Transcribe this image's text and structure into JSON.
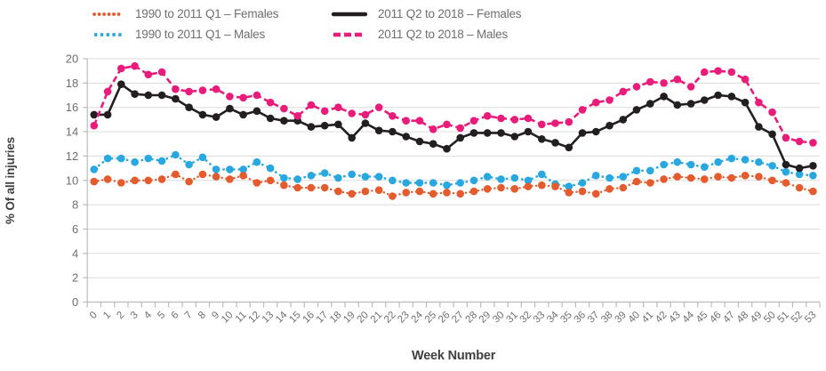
{
  "figure": {
    "xlabel": "Week Number",
    "ylabel": "% Of all injuries"
  },
  "colors": {
    "orange": "#e45b2d",
    "blue": "#29a8e0",
    "black": "#231f20",
    "magenta": "#ea1c7b",
    "grid": "#dcdcdc",
    "axis": "#b9bcbe",
    "tick_text": "#6d6e71",
    "title_text": "#414042"
  },
  "chart_data": {
    "type": "line",
    "title": "",
    "xlabel": "Week Number",
    "ylabel": "% Of all injuries",
    "x": [
      0,
      1,
      2,
      3,
      4,
      5,
      6,
      7,
      8,
      9,
      10,
      11,
      12,
      13,
      14,
      15,
      16,
      17,
      18,
      19,
      20,
      21,
      22,
      23,
      24,
      25,
      26,
      27,
      28,
      29,
      30,
      31,
      32,
      33,
      34,
      35,
      36,
      37,
      38,
      39,
      40,
      41,
      42,
      43,
      44,
      45,
      46,
      47,
      48,
      49,
      50,
      51,
      52,
      53
    ],
    "ylim": [
      0,
      20
    ],
    "ytick_step": 2,
    "grid": "horizontal",
    "legend_position": "top",
    "series": [
      {
        "name": "1990 to 2011 Q1 – Females",
        "color": "#e45b2d",
        "style": "dotted-round",
        "values": [
          9.9,
          10.1,
          9.8,
          10.0,
          10.0,
          10.1,
          10.5,
          9.9,
          10.5,
          10.3,
          10.1,
          10.4,
          9.8,
          10.0,
          9.6,
          9.4,
          9.4,
          9.4,
          9.1,
          8.9,
          9.1,
          9.2,
          8.7,
          9.0,
          9.1,
          8.9,
          9.0,
          8.9,
          9.1,
          9.3,
          9.4,
          9.3,
          9.5,
          9.6,
          9.5,
          9.0,
          9.1,
          8.9,
          9.3,
          9.4,
          9.9,
          9.8,
          10.1,
          10.3,
          10.2,
          10.1,
          10.3,
          10.2,
          10.4,
          10.3,
          10.0,
          9.8,
          9.4,
          9.1
        ]
      },
      {
        "name": "1990 to 2011 Q1 – Males",
        "color": "#29a8e0",
        "style": "dotted-square",
        "values": [
          10.9,
          11.8,
          11.8,
          11.5,
          11.8,
          11.6,
          12.1,
          11.3,
          11.9,
          10.9,
          10.9,
          10.9,
          11.5,
          11.0,
          10.2,
          10.1,
          10.4,
          10.6,
          10.2,
          10.5,
          10.3,
          10.3,
          10.0,
          9.8,
          9.8,
          9.8,
          9.6,
          9.8,
          10.0,
          10.3,
          10.1,
          10.2,
          10.0,
          10.5,
          9.7,
          9.5,
          9.8,
          10.4,
          10.2,
          10.3,
          10.8,
          10.8,
          11.3,
          11.5,
          11.3,
          11.1,
          11.5,
          11.8,
          11.7,
          11.5,
          11.2,
          10.7,
          10.5,
          10.4
        ]
      },
      {
        "name": "2011 Q2 to 2018 – Females",
        "color": "#231f20",
        "style": "solid",
        "values": [
          15.4,
          15.4,
          17.9,
          17.1,
          17.0,
          17.0,
          16.7,
          16.0,
          15.4,
          15.2,
          15.9,
          15.4,
          15.7,
          15.1,
          14.9,
          14.9,
          14.4,
          14.5,
          14.6,
          13.5,
          14.7,
          14.1,
          14.0,
          13.6,
          13.2,
          13.0,
          12.6,
          13.5,
          13.9,
          13.9,
          13.9,
          13.6,
          14.0,
          13.4,
          13.1,
          12.7,
          13.9,
          14.0,
          14.5,
          15.0,
          15.8,
          16.3,
          16.9,
          16.2,
          16.3,
          16.6,
          17.0,
          16.9,
          16.4,
          14.4,
          13.8,
          11.3,
          11.0,
          11.2
        ]
      },
      {
        "name": "2011 Q2 to 2018 – Males",
        "color": "#ea1c7b",
        "style": "dashed",
        "values": [
          14.5,
          17.3,
          19.2,
          19.4,
          18.7,
          18.9,
          17.5,
          17.3,
          17.4,
          17.5,
          16.9,
          16.8,
          17.0,
          16.4,
          15.9,
          15.3,
          16.2,
          15.7,
          16.0,
          15.5,
          15.4,
          16.0,
          15.3,
          14.9,
          14.9,
          14.2,
          14.6,
          14.3,
          14.9,
          15.3,
          15.1,
          15.0,
          15.1,
          14.6,
          14.7,
          14.8,
          15.8,
          16.4,
          16.6,
          17.3,
          17.7,
          18.1,
          18.0,
          18.3,
          17.7,
          18.9,
          19.0,
          18.9,
          18.3,
          16.4,
          15.6,
          13.5,
          13.2,
          13.1
        ]
      }
    ]
  }
}
